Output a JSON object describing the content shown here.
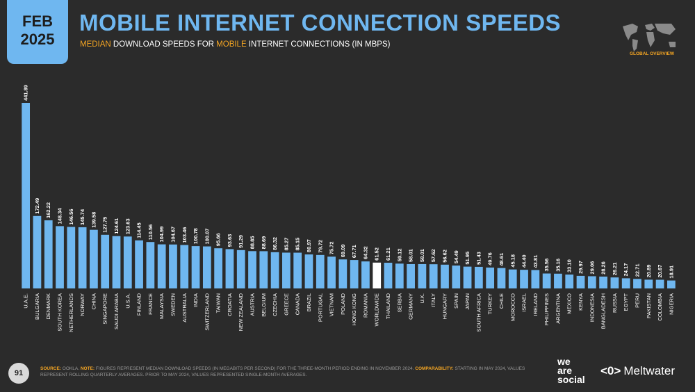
{
  "header": {
    "month": "FEB",
    "year": "2025",
    "title": "MOBILE INTERNET CONNECTION SPEEDS",
    "subtitle_part1": "MEDIAN",
    "subtitle_part2": " DOWNLOAD SPEEDS FOR ",
    "subtitle_part3": "MOBILE",
    "subtitle_part4": " INTERNET CONNECTIONS (IN MBPS)",
    "map_label": "GLOBAL OVERVIEW"
  },
  "colors": {
    "bar": "#6fb7f0",
    "highlight": "#ffffff",
    "accent": "#f5a623",
    "background": "#2b2b2b"
  },
  "chart_data": {
    "type": "bar",
    "categories": [
      "U.A.E.",
      "BULGARIA",
      "DENMARK",
      "SOUTH KOREA",
      "NETHERLANDS",
      "NORWAY",
      "CHINA",
      "SINGAPORE",
      "SAUDI ARABIA",
      "U.S.A.",
      "FINLAND",
      "FRANCE",
      "MALAYSIA",
      "SWEDEN",
      "AUSTRALIA",
      "INDIA",
      "SWITZERLAND",
      "TAIWAN",
      "CROATIA",
      "NEW ZEALAND",
      "AUSTRIA",
      "BELGIUM",
      "CZECHIA",
      "GREECE",
      "CANADA",
      "BRAZIL",
      "PORTUGAL",
      "VIETNAM",
      "POLAND",
      "HONG KONG",
      "ROMANIA",
      "WORLDWIDE",
      "THAILAND",
      "SERBIA",
      "GERMANY",
      "U.K.",
      "ITALY",
      "HUNGARY",
      "SPAIN",
      "JAPAN",
      "SOUTH AFRICA",
      "TURKEY",
      "CHILE",
      "MOROCCO",
      "ISRAEL",
      "IRELAND",
      "PHILIPPINES",
      "ARGENTINA",
      "MEXICO",
      "KENYA",
      "INDONESIA",
      "BANGLADESH",
      "RUSSIA",
      "EGYPT",
      "PERU",
      "PAKISTAN",
      "COLOMBIA",
      "NIGERIA"
    ],
    "values": [
      441.89,
      172.49,
      162.22,
      148.34,
      146.56,
      145.74,
      139.58,
      127.75,
      124.61,
      123.63,
      114.45,
      110.56,
      104.99,
      104.67,
      103.46,
      100.78,
      100.07,
      95.66,
      93.63,
      91.29,
      88.85,
      88.69,
      86.32,
      85.27,
      85.15,
      80.97,
      79.72,
      75.72,
      69.09,
      67.71,
      64.32,
      61.52,
      61.21,
      59.12,
      58.01,
      58.01,
      57.62,
      56.62,
      54.49,
      51.95,
      51.43,
      49.76,
      48.61,
      45.18,
      44.4,
      43.81,
      35.56,
      35.16,
      33.1,
      29.97,
      29.06,
      28.26,
      26.21,
      24.17,
      22.71,
      20.89,
      20.67,
      18.91
    ],
    "value_labels": [
      "441.89",
      "172.49",
      "162.22",
      "148.34",
      "146.56",
      "145.74",
      "139.58",
      "127.75",
      "124.61",
      "123.63",
      "114.45",
      "110.56",
      "104.99",
      "104.67",
      "103.46",
      "100.78",
      "100.07",
      "95.66",
      "93.63",
      "91.29",
      "88.85",
      "88.69",
      "86.32",
      "85.27",
      "85.15",
      "80.97",
      "79.72",
      "75.72",
      "69.09",
      "67.71",
      "64.32",
      "61.52",
      "61.21",
      "59.12",
      "58.01",
      "58.01",
      "57.62",
      "56.62",
      "54.49",
      "51.95",
      "51.43",
      "49.76",
      "48.61",
      "45.18",
      "44.40",
      "43.81",
      "35.56",
      "35.16",
      "33.10",
      "29.97",
      "29.06",
      "28.26",
      "26.21",
      "24.17",
      "22.71",
      "20.89",
      "20.67",
      "18.91"
    ],
    "highlight_category": "WORLDWIDE",
    "ylim": [
      0,
      441.89
    ],
    "grid": false,
    "legend": "none"
  },
  "footer": {
    "page_number": "91",
    "source_label": "SOURCE:",
    "source_text": " OOKLA. ",
    "note_label": "NOTE:",
    "note_text": " FIGURES REPRESENT MEDIAN DOWNLOAD SPEEDS (IN MEGABITS PER SECOND) FOR THE THREE-MONTH PERIOD ENDING IN NOVEMBER 2024. ",
    "comparability_label": "COMPARABILITY:",
    "comparability_text": " STARTING IN MAY 2024, VALUES REPRESENT ROLLING QUARTERLY AVERAGES. PRIOR TO MAY 2024, VALUES REPRESENTED SINGLE-MONTH AVERAGES.",
    "brand1_line1": "we",
    "brand1_line2": "are",
    "brand1_line3": "social",
    "brand2_logo": "<0>",
    "brand2": "Meltwater"
  }
}
